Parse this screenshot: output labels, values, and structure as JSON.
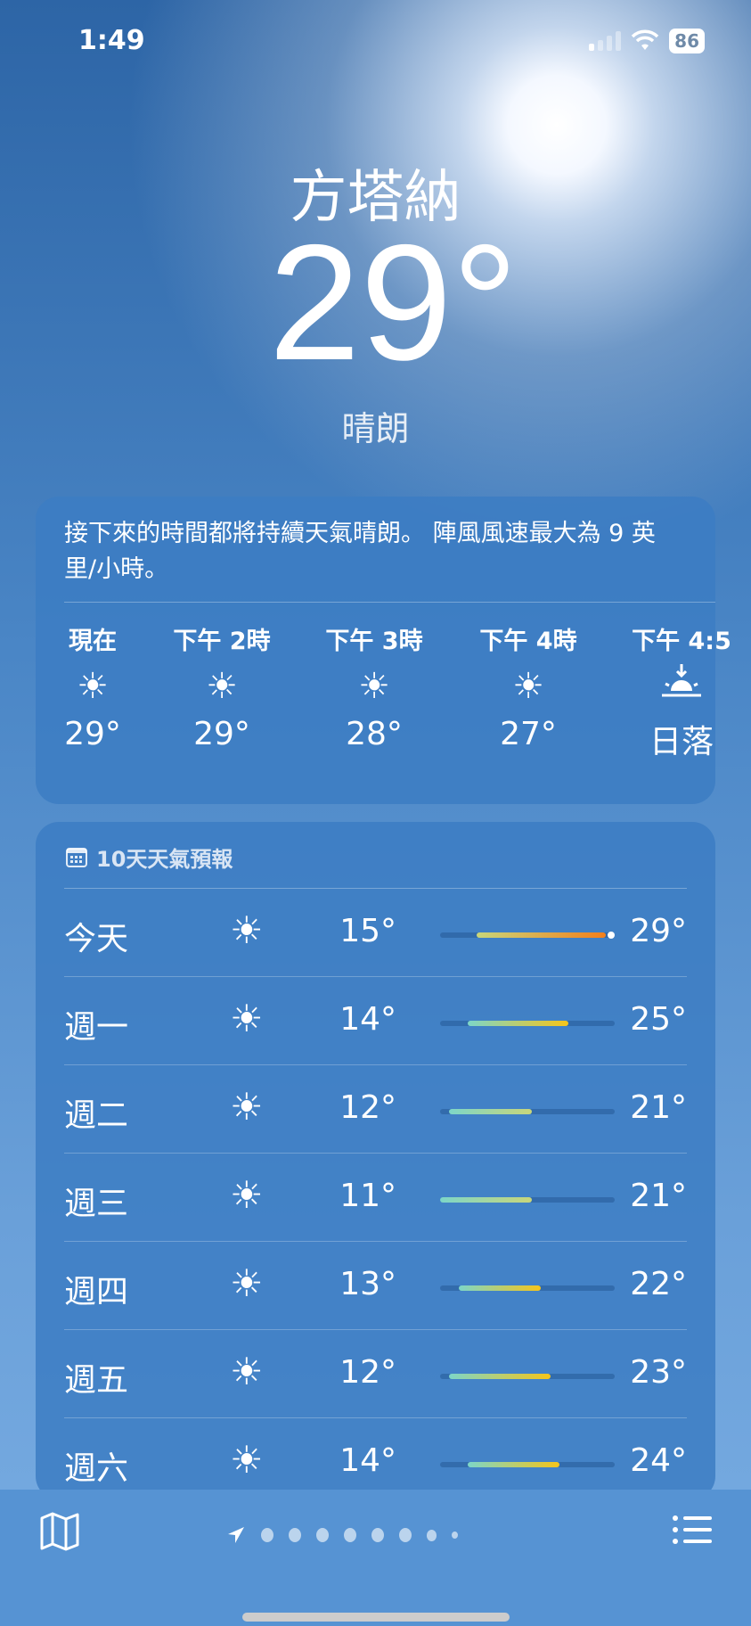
{
  "status": {
    "time": "1:49",
    "battery": "86"
  },
  "location": {
    "city": "方塔納",
    "temperature": "29°",
    "condition": "晴朗"
  },
  "hourly": {
    "summary": "接下來的時間都將持續天氣晴朗。 陣風風速最大為 9 英里/小時。",
    "items": [
      {
        "label": "現在",
        "icon": "sun-icon",
        "value": "29°"
      },
      {
        "label": "下午 2時",
        "icon": "sun-icon",
        "value": "29°"
      },
      {
        "label": "下午 3時",
        "icon": "sun-icon",
        "value": "28°"
      },
      {
        "label": "下午 4時",
        "icon": "sun-icon",
        "value": "27°"
      },
      {
        "label": "下午 4:5",
        "icon": "sunset-icon",
        "value": "日落"
      }
    ]
  },
  "forecast": {
    "header": "10天天氣預報",
    "range": [
      11,
      30
    ],
    "days": [
      {
        "day": "今天",
        "icon": "sun-icon",
        "low": "15°",
        "high": "29°",
        "lo": 15,
        "hi": 29,
        "current": 29
      },
      {
        "day": "週一",
        "icon": "sun-icon",
        "low": "14°",
        "high": "25°",
        "lo": 14,
        "hi": 25
      },
      {
        "day": "週二",
        "icon": "sun-icon",
        "low": "12°",
        "high": "21°",
        "lo": 12,
        "hi": 21
      },
      {
        "day": "週三",
        "icon": "sun-icon",
        "low": "11°",
        "high": "21°",
        "lo": 11,
        "hi": 21
      },
      {
        "day": "週四",
        "icon": "sun-icon",
        "low": "13°",
        "high": "22°",
        "lo": 13,
        "hi": 22
      },
      {
        "day": "週五",
        "icon": "sun-icon",
        "low": "12°",
        "high": "23°",
        "lo": 12,
        "hi": 23
      },
      {
        "day": "週六",
        "icon": "sun-icon",
        "low": "14°",
        "high": "24°",
        "lo": 14,
        "hi": 24
      }
    ]
  },
  "pager": {
    "pages": 9,
    "current": 0
  }
}
